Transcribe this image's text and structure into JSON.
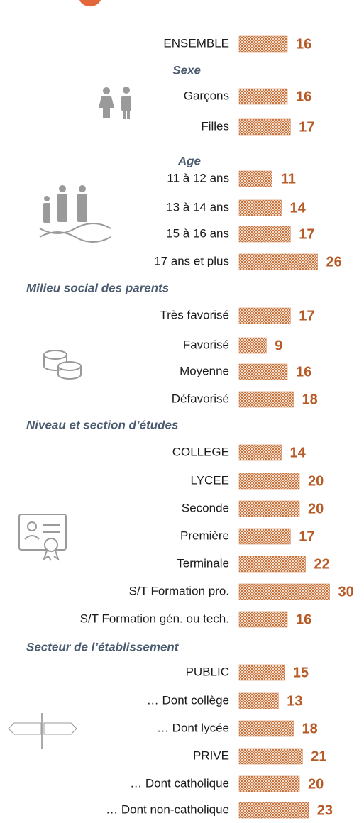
{
  "chart_data": {
    "type": "bar",
    "color": "#c8743f",
    "groups": [
      {
        "categories": [
          "ENSEMBLE"
        ],
        "values": [
          16
        ]
      },
      {
        "title": "Sexe",
        "categories": [
          "Garçons",
          "Filles"
        ],
        "values": [
          16,
          17
        ]
      },
      {
        "title": "Age",
        "categories": [
          "11 à 12 ans",
          "13 à 14 ans",
          "15 à 16 ans",
          "17 ans et plus"
        ],
        "values": [
          11,
          14,
          17,
          26
        ]
      },
      {
        "title": "Milieu social des parents",
        "categories": [
          "Très favorisé",
          "Favorisé",
          "Moyenne",
          "Défavorisé"
        ],
        "values": [
          17,
          9,
          16,
          18
        ]
      },
      {
        "title": "Niveau et section d’études",
        "categories": [
          "COLLEGE",
          "LYCEE",
          "Seconde",
          "Première",
          "Terminale",
          "S/T Formation pro.",
          "S/T Formation gén. ou tech."
        ],
        "values": [
          14,
          20,
          20,
          17,
          22,
          30,
          16
        ]
      },
      {
        "title": "Secteur de l’établissement",
        "categories": [
          "PUBLIC",
          "… Dont collège",
          "… Dont lycée",
          "PRIVE",
          "… Dont catholique",
          "… Dont non-catholique"
        ],
        "values": [
          15,
          13,
          18,
          21,
          20,
          23
        ]
      }
    ]
  }
}
